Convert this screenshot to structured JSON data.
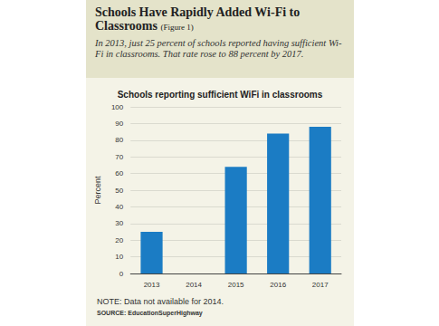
{
  "chart_data": {
    "type": "bar",
    "title": "Schools Have Rapidly Added Wi-Fi to Classrooms",
    "figure_label": "(Figure 1)",
    "subtitle": "In 2013, just 25 percent of schools reported having sufficient Wi-Fi in classrooms. That rate rose to 88 percent by 2017.",
    "chart_title": "Schools reporting sufficient WiFi in classrooms",
    "y_label": "Percent",
    "categories": [
      "2013",
      "2014",
      "2015",
      "2016",
      "2017"
    ],
    "values": [
      25,
      null,
      64,
      84,
      88
    ],
    "color": "#1b7cc4",
    "ylim": [
      0,
      100
    ],
    "yticks": [
      0,
      10,
      20,
      30,
      40,
      50,
      60,
      70,
      80,
      90,
      100
    ],
    "grid": true,
    "note": "NOTE: Data not available for 2014.",
    "source": "SOURCE: EducationSuperHighway"
  }
}
